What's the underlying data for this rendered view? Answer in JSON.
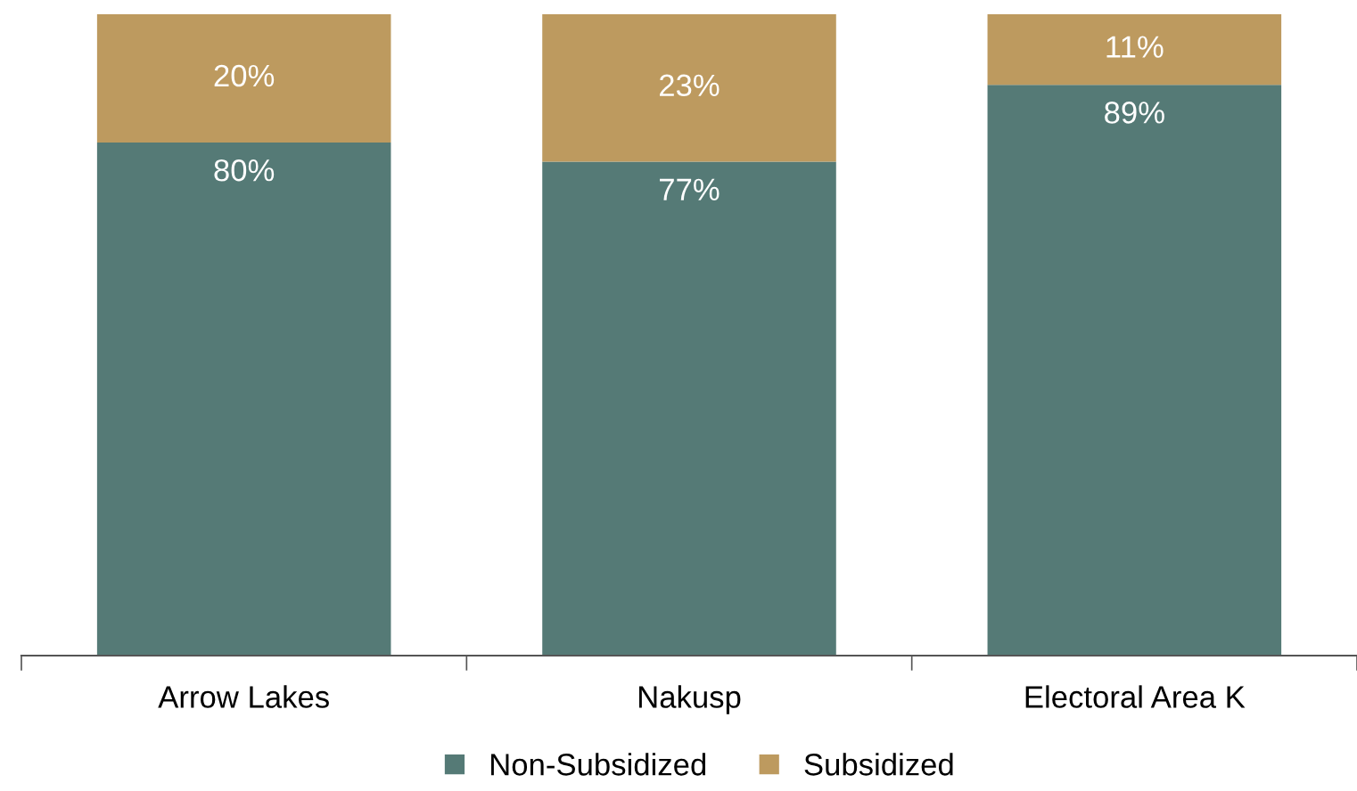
{
  "chart_data": {
    "type": "bar",
    "stacked": true,
    "relative": false,
    "categories": [
      "Arrow Lakes",
      "Nakusp",
      "Electoral Area K"
    ],
    "series": [
      {
        "name": "Non-Subsidized",
        "color": "#557a76",
        "values": [
          80,
          77,
          89
        ],
        "value_labels": [
          "80%",
          "77%",
          "89%"
        ]
      },
      {
        "name": "Subsidized",
        "color": "#bd9a5f",
        "values": [
          20,
          23,
          11
        ],
        "value_labels": [
          "20%",
          "23%",
          "11%"
        ]
      }
    ],
    "legend": "bottom",
    "grid": false
  }
}
